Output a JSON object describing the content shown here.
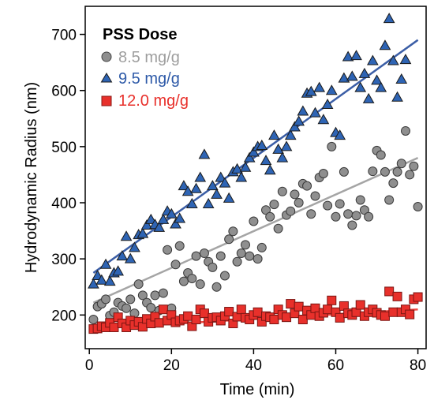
{
  "chart_data": {
    "type": "scatter",
    "xlabel": "Time (min)",
    "ylabel": "Hydrodynamic Radius (nm)",
    "xlim": [
      -1,
      82
    ],
    "ylim": [
      140,
      750
    ],
    "xticks": [
      0,
      20,
      40,
      60,
      80
    ],
    "yticks": [
      200,
      300,
      400,
      500,
      600,
      700
    ],
    "grid": false,
    "legend": {
      "title": "PSS Dose",
      "placement": "top-left"
    },
    "series": [
      {
        "name": "8.5 mg/g",
        "marker": "circle",
        "color": "#8f8f8f",
        "line_color": "#a5a5a5",
        "fit": [
          [
            1,
            222
          ],
          [
            80,
            480
          ]
        ],
        "points": [
          [
            1,
            192
          ],
          [
            2,
            215
          ],
          [
            3,
            220
          ],
          [
            4,
            228
          ],
          [
            5,
            199
          ],
          [
            6,
            205
          ],
          [
            7,
            222
          ],
          [
            8,
            216
          ],
          [
            9,
            212
          ],
          [
            10,
            228
          ],
          [
            11,
            203
          ],
          [
            12,
            255
          ],
          [
            13,
            235
          ],
          [
            14,
            222
          ],
          [
            15,
            213
          ],
          [
            16,
            235
          ],
          [
            17,
            208
          ],
          [
            18,
            239
          ],
          [
            19,
            316
          ],
          [
            20,
            212
          ],
          [
            21,
            290
          ],
          [
            22,
            323
          ],
          [
            23,
            260
          ],
          [
            24,
            275
          ],
          [
            25,
            265
          ],
          [
            26,
            305
          ],
          [
            27,
            255
          ],
          [
            28,
            310
          ],
          [
            29,
            295
          ],
          [
            30,
            285
          ],
          [
            31,
            250
          ],
          [
            32,
            305
          ],
          [
            33,
            270
          ],
          [
            34,
            335
          ],
          [
            35,
            349
          ],
          [
            36,
            295
          ],
          [
            37,
            310
          ],
          [
            38,
            325
          ],
          [
            39,
            305
          ],
          [
            40,
            367
          ],
          [
            41,
            300
          ],
          [
            42,
            320
          ],
          [
            43,
            387
          ],
          [
            44,
            375
          ],
          [
            45,
            397
          ],
          [
            46,
            354
          ],
          [
            47,
            420
          ],
          [
            48,
            378
          ],
          [
            49,
            385
          ],
          [
            50,
            415
          ],
          [
            51,
            400
          ],
          [
            52,
            434
          ],
          [
            53,
            430
          ],
          [
            54,
            380
          ],
          [
            55,
            412
          ],
          [
            56,
            445
          ],
          [
            57,
            452
          ],
          [
            58,
            395
          ],
          [
            59,
            500
          ],
          [
            60,
            375
          ],
          [
            61,
            398
          ],
          [
            62,
            455
          ],
          [
            63,
            380
          ],
          [
            64,
            360
          ],
          [
            65,
            377
          ],
          [
            66,
            405
          ],
          [
            67,
            387
          ],
          [
            68,
            375
          ],
          [
            69,
            456
          ],
          [
            70,
            493
          ],
          [
            71,
            485
          ],
          [
            72,
            455
          ],
          [
            73,
            405
          ],
          [
            74,
            435
          ],
          [
            75,
            455
          ],
          [
            76,
            470
          ],
          [
            77,
            528
          ],
          [
            78,
            450
          ],
          [
            79,
            465
          ],
          [
            80,
            393
          ]
        ]
      },
      {
        "name": "9.5 mg/g",
        "marker": "triangle",
        "color": "#2e64b4",
        "line_color": "#3b5ea6",
        "fit": [
          [
            1,
            275
          ],
          [
            80,
            690
          ]
        ],
        "points": [
          [
            1,
            255
          ],
          [
            2,
            270
          ],
          [
            3,
            262
          ],
          [
            4,
            290
          ],
          [
            5,
            260
          ],
          [
            6,
            275
          ],
          [
            7,
            278
          ],
          [
            8,
            305
          ],
          [
            9,
            340
          ],
          [
            10,
            300
          ],
          [
            11,
            320
          ],
          [
            12,
            343
          ],
          [
            13,
            345
          ],
          [
            14,
            360
          ],
          [
            15,
            370
          ],
          [
            16,
            361
          ],
          [
            17,
            356
          ],
          [
            18,
            370
          ],
          [
            19,
            385
          ],
          [
            20,
            380
          ],
          [
            21,
            362
          ],
          [
            22,
            372
          ],
          [
            23,
            430
          ],
          [
            24,
            420
          ],
          [
            25,
            398
          ],
          [
            26,
            425
          ],
          [
            27,
            445
          ],
          [
            28,
            486
          ],
          [
            29,
            398
          ],
          [
            30,
            430
          ],
          [
            31,
            415
          ],
          [
            32,
            445
          ],
          [
            33,
            435
          ],
          [
            34,
            408
          ],
          [
            35,
            455
          ],
          [
            36,
            460
          ],
          [
            37,
            445
          ],
          [
            38,
            463
          ],
          [
            39,
            480
          ],
          [
            40,
            490
          ],
          [
            41,
            500
          ],
          [
            42,
            502
          ],
          [
            43,
            475
          ],
          [
            44,
            458
          ],
          [
            45,
            520
          ],
          [
            46,
            495
          ],
          [
            47,
            480
          ],
          [
            48,
            500
          ],
          [
            49,
            520
          ],
          [
            50,
            535
          ],
          [
            51,
            545
          ],
          [
            52,
            563
          ],
          [
            53,
            595
          ],
          [
            54,
            598
          ],
          [
            55,
            560
          ],
          [
            56,
            605
          ],
          [
            57,
            548
          ],
          [
            58,
            575
          ],
          [
            59,
            600
          ],
          [
            60,
            525
          ],
          [
            61,
            520
          ],
          [
            62,
            622
          ],
          [
            63,
            660
          ],
          [
            64,
            625
          ],
          [
            65,
            662
          ],
          [
            66,
            605
          ],
          [
            67,
            630
          ],
          [
            68,
            585
          ],
          [
            69,
            653
          ],
          [
            70,
            618
          ],
          [
            71,
            605
          ],
          [
            72,
            680
          ],
          [
            73,
            728
          ],
          [
            74,
            653
          ],
          [
            75,
            588
          ],
          [
            76,
            620
          ],
          [
            77,
            655
          ]
        ]
      },
      {
        "name": "12.0 mg/g",
        "marker": "square",
        "color": "#e8302b",
        "line_color": "#f04a44",
        "fit": [
          [
            1,
            176
          ],
          [
            80,
            210
          ]
        ],
        "points": [
          [
            1,
            175
          ],
          [
            2,
            176
          ],
          [
            3,
            180
          ],
          [
            4,
            178
          ],
          [
            5,
            186
          ],
          [
            6,
            178
          ],
          [
            7,
            196
          ],
          [
            8,
            185
          ],
          [
            9,
            178
          ],
          [
            10,
            190
          ],
          [
            11,
            182
          ],
          [
            12,
            188
          ],
          [
            13,
            179
          ],
          [
            14,
            193
          ],
          [
            15,
            185
          ],
          [
            16,
            197
          ],
          [
            17,
            186
          ],
          [
            18,
            210
          ],
          [
            19,
            190
          ],
          [
            20,
            200
          ],
          [
            21,
            187
          ],
          [
            22,
            190
          ],
          [
            23,
            193
          ],
          [
            24,
            198
          ],
          [
            25,
            180
          ],
          [
            26,
            192
          ],
          [
            27,
            210
          ],
          [
            28,
            203
          ],
          [
            29,
            188
          ],
          [
            30,
            195
          ],
          [
            31,
            196
          ],
          [
            32,
            190
          ],
          [
            33,
            198
          ],
          [
            34,
            206
          ],
          [
            35,
            185
          ],
          [
            36,
            197
          ],
          [
            37,
            210
          ],
          [
            38,
            195
          ],
          [
            39,
            192
          ],
          [
            40,
            200
          ],
          [
            41,
            205
          ],
          [
            42,
            188
          ],
          [
            43,
            198
          ],
          [
            44,
            196
          ],
          [
            45,
            192
          ],
          [
            46,
            210
          ],
          [
            47,
            200
          ],
          [
            48,
            196
          ],
          [
            49,
            220
          ],
          [
            50,
            203
          ],
          [
            51,
            215
          ],
          [
            52,
            192
          ],
          [
            53,
            208
          ],
          [
            54,
            200
          ],
          [
            55,
            212
          ],
          [
            56,
            198
          ],
          [
            57,
            204
          ],
          [
            58,
            210
          ],
          [
            59,
            226
          ],
          [
            60,
            205
          ],
          [
            61,
            195
          ],
          [
            62,
            216
          ],
          [
            63,
            203
          ],
          [
            64,
            200
          ],
          [
            65,
            205
          ],
          [
            66,
            218
          ],
          [
            67,
            198
          ],
          [
            68,
            205
          ],
          [
            69,
            210
          ],
          [
            70,
            204
          ],
          [
            71,
            200
          ],
          [
            72,
            198
          ],
          [
            73,
            242
          ],
          [
            74,
            205
          ],
          [
            75,
            233
          ],
          [
            76,
            205
          ],
          [
            77,
            210
          ],
          [
            78,
            201
          ],
          [
            79,
            228
          ],
          [
            80,
            232
          ]
        ]
      }
    ]
  }
}
